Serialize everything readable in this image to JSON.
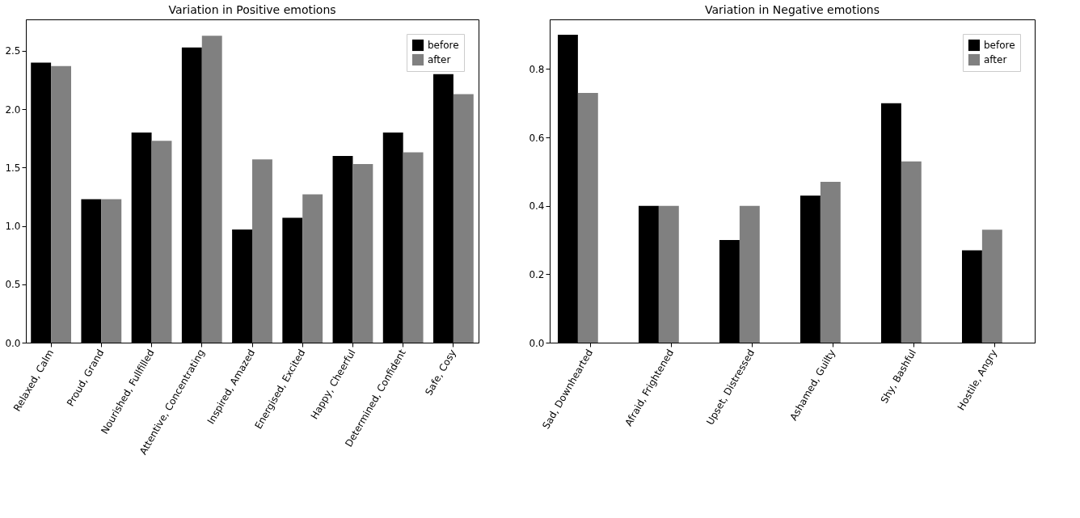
{
  "chart_data": [
    {
      "type": "bar",
      "title": "Variation in Positive emotions",
      "categories": [
        "Relaxed, Calm",
        "Proud, Grand",
        "Nourished, Fullfilled",
        "Attentive, Concentrating",
        "Inspired, Amazed",
        "Energised, Excited",
        "Happy, Cheerful",
        "Determined, Confident",
        "Safe, Cosy"
      ],
      "series": [
        {
          "name": "before",
          "color": "#000000",
          "values": [
            2.4,
            1.23,
            1.8,
            2.53,
            0.97,
            1.07,
            1.6,
            1.8,
            2.3
          ]
        },
        {
          "name": "after",
          "color": "#808080",
          "values": [
            2.37,
            1.23,
            1.73,
            2.63,
            1.57,
            1.27,
            1.53,
            1.63,
            2.13
          ]
        }
      ],
      "ylim": [
        0,
        2.77
      ],
      "yticks": [
        {
          "value": 0,
          "label": "0.0"
        },
        0.5,
        {
          "value": 1,
          "label": "1.0"
        },
        1.5,
        {
          "value": 2,
          "label": "2.0"
        },
        2.5
      ],
      "legend": "top right",
      "grid": false
    },
    {
      "type": "bar",
      "title": "Variation in Negative emotions",
      "categories": [
        "Sad, Downhearted",
        "Afraid, Frightened",
        "Upset, Distressed",
        "Ashamed, Guilty",
        "Shy, Bashful",
        "Hostile, Angry"
      ],
      "series": [
        {
          "name": "before",
          "color": "#000000",
          "values": [
            0.9,
            0.4,
            0.3,
            0.43,
            0.7,
            0.27
          ]
        },
        {
          "name": "after",
          "color": "#808080",
          "values": [
            0.73,
            0.4,
            0.4,
            0.47,
            0.53,
            0.33
          ]
        }
      ],
      "ylim": [
        0,
        0.945
      ],
      "yticks": [
        {
          "value": 0,
          "label": "0.0"
        },
        0.2,
        0.4,
        0.6,
        0.8
      ],
      "legend": "top right",
      "grid": false
    }
  ]
}
